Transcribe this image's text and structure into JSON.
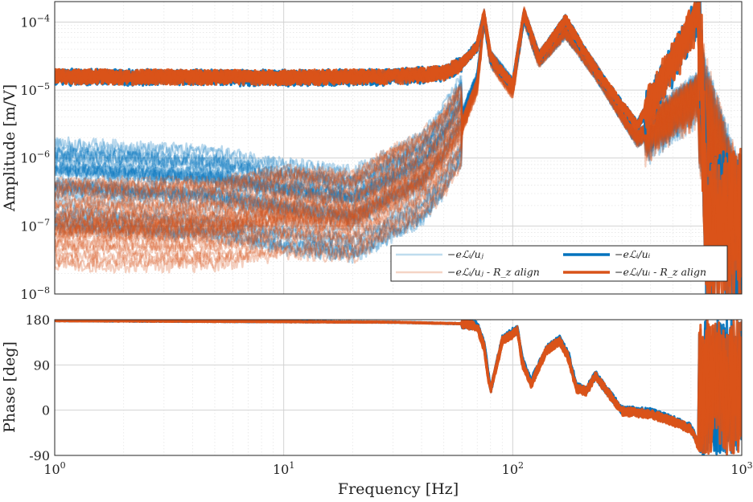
{
  "colors": {
    "blue": "#0072BD",
    "orange": "#D95319",
    "grid": "#d2d2d2"
  },
  "axis_text": {
    "amp_ylabel": "Amplitude [m/V]",
    "phase_ylabel": "Phase [deg]",
    "xlabel": "Frequency [Hz]"
  },
  "legend": {
    "l1": "−eℒᵢ/uⱼ",
    "l2": "−eℒᵢ/uᵢ",
    "l3": "−eℒᵢ/uⱼ - R_z align",
    "l4": "−eℒᵢ/uᵢ - R_z align"
  },
  "chart_data": [
    {
      "type": "line",
      "panel": "amplitude",
      "xscale": "log",
      "yscale": "log",
      "xlim": [
        1,
        1000
      ],
      "ylim": [
        1e-08,
        0.0002
      ],
      "ylabel": "Amplitude [m/V]",
      "x_ticks": [
        {
          "base": "10",
          "exp": "0"
        },
        {
          "base": "10",
          "exp": "1"
        },
        {
          "base": "10",
          "exp": "2"
        },
        {
          "base": "10",
          "exp": "3"
        }
      ],
      "y_ticks": [
        {
          "base": "10",
          "exp": "−8"
        },
        {
          "base": "10",
          "exp": "−7"
        },
        {
          "base": "10",
          "exp": "−6"
        },
        {
          "base": "10",
          "exp": "−5"
        },
        {
          "base": "10",
          "exp": "−4"
        }
      ],
      "grid": true,
      "legend_position": "bottom-right",
      "series": [
        {
          "name": "−eℒᵢ/uⱼ",
          "color": "#0072BD",
          "style": "light",
          "curves": 30,
          "representative": {
            "x": [
              1,
              5,
              10,
              20,
              30,
              40,
              50,
              60,
              70,
              75,
              80,
              100,
              112,
              130,
              170,
              230,
              350,
              650,
              700,
              1000
            ],
            "y": [
              4e-07,
              3e-07,
              2e-07,
              1.5e-07,
              3e-07,
              5e-07,
              1.3e-06,
              4e-06,
              1.5e-05,
              0.00012,
              3e-05,
              1.2e-05,
              0.00013,
              3e-05,
              8e-05,
              2e-05,
              2e-06,
              1e-05,
              2e-06,
              5e-08
            ]
          }
        },
        {
          "name": "−eℒᵢ/uᵢ",
          "color": "#0072BD",
          "style": "bold",
          "curves": 6,
          "representative": {
            "x": [
              1,
              10,
              30,
              50,
              60,
              70,
              75,
              80,
              100,
              112,
              130,
              170,
              230,
              350,
              650,
              700,
              1000
            ],
            "y": [
              1.6e-05,
              1.55e-05,
              1.6e-05,
              1.8e-05,
              2.5e-05,
              4.5e-05,
              0.00013,
              3e-05,
              1.2e-05,
              0.00013,
              3e-05,
              0.00011,
              2e-05,
              3e-06,
              0.00015,
              8e-08,
              1e-07
            ]
          }
        },
        {
          "name": "−eℒᵢ/uⱼ - R_z align",
          "color": "#D95319",
          "style": "light",
          "curves": 30,
          "representative": {
            "x": [
              1,
              5,
              10,
              20,
              30,
              40,
              50,
              60,
              70,
              75,
              80,
              100,
              112,
              130,
              170,
              230,
              350,
              650,
              700,
              1000
            ],
            "y": [
              1e-07,
              1e-07,
              1.5e-07,
              1.3e-07,
              3e-07,
              5e-07,
              1.1e-06,
              3e-06,
              1.2e-05,
              0.00012,
              3e-05,
              1e-05,
              0.00013,
              3e-05,
              8e-05,
              2e-05,
              2e-06,
              1e-05,
              2e-06,
              5e-08
            ]
          }
        },
        {
          "name": "−eℒᵢ/uᵢ - R_z align",
          "color": "#D95319",
          "style": "bold",
          "curves": 6,
          "representative": {
            "x": [
              1,
              10,
              30,
              50,
              60,
              70,
              75,
              80,
              100,
              112,
              130,
              170,
              230,
              350,
              650,
              700,
              1000
            ],
            "y": [
              1.6e-05,
              1.55e-05,
              1.6e-05,
              1.8e-05,
              2.5e-05,
              4.5e-05,
              0.000135,
              3e-05,
              1.2e-05,
              0.000135,
              3e-05,
              0.00011,
              2e-05,
              3e-06,
              0.00016,
              8e-08,
              1e-07
            ]
          }
        }
      ]
    },
    {
      "type": "line",
      "panel": "phase",
      "xscale": "log",
      "xlim": [
        1,
        1000
      ],
      "ylim": [
        -90,
        180
      ],
      "ylabel": "Phase [deg]",
      "xlabel": "Frequency [Hz]",
      "x_ticks": [
        {
          "base": "10",
          "exp": "0"
        },
        {
          "base": "10",
          "exp": "1"
        },
        {
          "base": "10",
          "exp": "2"
        },
        {
          "base": "10",
          "exp": "3"
        }
      ],
      "y_ticks": [
        "180",
        "90",
        "0",
        "-90"
      ],
      "grid": true,
      "series": [
        {
          "name": "−eℒᵢ/uᵢ",
          "color": "#0072BD",
          "representative": {
            "x": [
              1,
              10,
              30,
              60,
              70,
              75,
              80,
              90,
              100,
              105,
              110,
              120,
              140,
              160,
              175,
              190,
              210,
              230,
              300,
              400,
              500,
              600,
              650,
              700,
              800,
              900,
              1000
            ],
            "y": [
              178,
              176,
              175,
              172,
              168,
              130,
              40,
              140,
              155,
              160,
              100,
              55,
              120,
              140,
              110,
              45,
              40,
              70,
              0,
              -5,
              -20,
              -35,
              -70,
              180,
              -90,
              150,
              -60
            ]
          }
        },
        {
          "name": "−eℒᵢ/uᵢ - R_z align",
          "color": "#D95319",
          "representative": {
            "x": [
              1,
              10,
              30,
              60,
              70,
              75,
              80,
              90,
              100,
              105,
              110,
              120,
              140,
              160,
              175,
              190,
              210,
              230,
              300,
              400,
              500,
              600,
              650,
              700,
              800,
              900,
              1000
            ],
            "y": [
              178,
              176,
              175,
              172,
              166,
              125,
              35,
              138,
              152,
              158,
              95,
              50,
              118,
              138,
              105,
              42,
              38,
              68,
              -2,
              -8,
              -22,
              -38,
              -75,
              175,
              -85,
              160,
              -70
            ]
          }
        }
      ]
    }
  ]
}
